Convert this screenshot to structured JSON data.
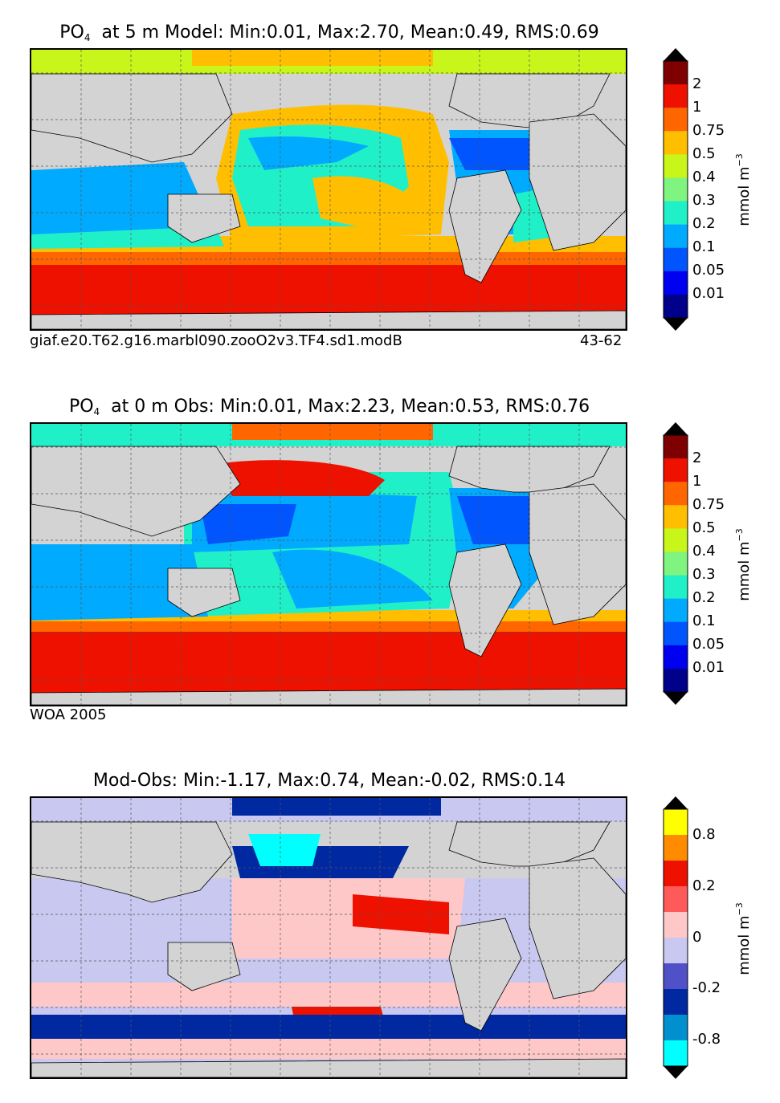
{
  "panels": [
    {
      "id": "model",
      "title_species": "PO",
      "title_sub": "4",
      "title_rest": "  at 5 m Model: Min:0.01, Max:2.70, Mean:0.49, RMS:0.69",
      "caption_left": "giaf.e20.T62.g16.marbl090.zooO2v3.TF4.sd1.modB",
      "caption_right": "43-62",
      "colorbar": {
        "labels": [
          "2",
          "1",
          "0.75",
          "0.5",
          "0.4",
          "0.3",
          "0.2",
          "0.1",
          "0.05",
          "0.01"
        ],
        "colors": [
          "#7f0000",
          "#ee1100",
          "#ff6600",
          "#ffbf00",
          "#c8f51a",
          "#7ff57f",
          "#20f0c8",
          "#00aaff",
          "#0055ff",
          "#0000f0",
          "#00008b"
        ],
        "unit_base": "mmol m",
        "unit_sup": "−3"
      }
    },
    {
      "id": "obs",
      "title_species": "PO",
      "title_sub": "4",
      "title_rest": "  at 0 m Obs: Min:0.01, Max:2.23, Mean:0.53, RMS:0.76",
      "caption_left": "WOA 2005",
      "caption_right": "",
      "colorbar": {
        "labels": [
          "2",
          "1",
          "0.75",
          "0.5",
          "0.4",
          "0.3",
          "0.2",
          "0.1",
          "0.05",
          "0.01"
        ],
        "colors": [
          "#7f0000",
          "#ee1100",
          "#ff6600",
          "#ffbf00",
          "#c8f51a",
          "#7ff57f",
          "#20f0c8",
          "#00aaff",
          "#0055ff",
          "#0000f0",
          "#00008b"
        ],
        "unit_base": "mmol m",
        "unit_sup": "−3"
      }
    },
    {
      "id": "diff",
      "title_species": "",
      "title_sub": "",
      "title_rest": "Mod-Obs: Min:-1.17, Max:0.74, Mean:-0.02, RMS:0.14",
      "caption_left": "",
      "caption_right": "",
      "colorbar": {
        "labels": [
          "0.8",
          "0.2",
          "0",
          "-0.2",
          "-0.8"
        ],
        "colors": [
          "#ffff00",
          "#ff8c00",
          "#ee1100",
          "#ff5a5a",
          "#ffc8c8",
          "#c8c8f0",
          "#5050c8",
          "#0028a0",
          "#0090d0",
          "#00ffff"
        ],
        "unit_base": "mmol m",
        "unit_sup": "−3"
      }
    }
  ],
  "colors": {
    "land": "#d3d3d3",
    "grid": "#555555",
    "frame": "#000000"
  }
}
